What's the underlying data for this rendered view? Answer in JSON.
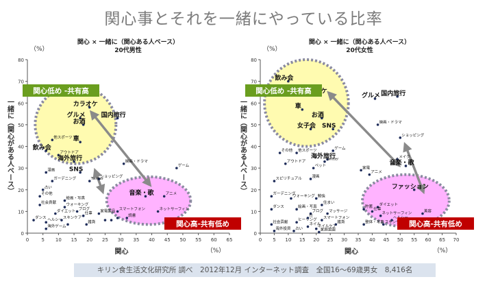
{
  "page": {
    "title": "関心事とそれを一緒にやっている比率",
    "footer": "キリン食生活文化研究所 調べ　2012年12月 インターネット調査　全国16～69歳男女　8,416名"
  },
  "colors": {
    "green": "#6a9e1f",
    "red": "#c00000",
    "yellow": "#fffbb0",
    "pink": "#ffb3ff",
    "dash": "#7e7e7e"
  },
  "chart_data": [
    {
      "type": "scatter",
      "title": "関心 × 一緒に（関心ある人ベース）",
      "subtitle": "20代男性",
      "xlabel": "関心",
      "ylabel": "一緒に（関心がある人ベース）",
      "x_unit": "（%）",
      "y_unit": "（%）",
      "xlim": [
        0,
        65
      ],
      "ylim": [
        0,
        80
      ],
      "xticks": [
        0,
        5,
        10,
        15,
        20,
        25,
        30,
        35,
        40,
        45,
        50,
        55,
        60,
        65
      ],
      "yticks": [
        0,
        10,
        20,
        30,
        40,
        50,
        60,
        70,
        80
      ],
      "callouts": [
        {
          "text": "関心低め -共有高",
          "color": "green",
          "position": "upper-left"
        },
        {
          "text": "関心高-共有低め",
          "color": "red",
          "position": "lower-right"
        }
      ],
      "clusters": [
        {
          "fill": "yellow",
          "cx": 15.5,
          "cy": 50,
          "rx": 13,
          "ry": 18
        },
        {
          "fill": "pink",
          "cx": 39,
          "cy": 15,
          "rx": 13.5,
          "ry": 11
        }
      ],
      "arrows": [
        {
          "from": [
            21,
            55
          ],
          "to": [
            39,
            23
          ]
        },
        {
          "from": [
            24,
            20
          ],
          "to": [
            22,
            28
          ]
        }
      ],
      "points": [
        {
          "x": 20,
          "y": 58,
          "label": "カラオケ",
          "big": true
        },
        {
          "x": 17,
          "y": 53,
          "label": "グルメ",
          "big": true
        },
        {
          "x": 18,
          "y": 50,
          "label": "お酒",
          "big": true
        },
        {
          "x": 29,
          "y": 53,
          "label": "国内旅行",
          "big": true
        },
        {
          "x": 17,
          "y": 42,
          "label": "車",
          "big": true
        },
        {
          "x": 8,
          "y": 43,
          "label": "他スポーツ",
          "big": false
        },
        {
          "x": 6,
          "y": 38,
          "label": "飲み会",
          "big": true
        },
        {
          "x": 10,
          "y": 36,
          "label": "アウトドア",
          "big": false
        },
        {
          "x": 15,
          "y": 33,
          "label": "海外旅行",
          "big": true
        },
        {
          "x": 17,
          "y": 28,
          "label": "SNS",
          "big": true
        },
        {
          "x": 31,
          "y": 32,
          "label": "映画・ドラマ",
          "big": false
        },
        {
          "x": 48,
          "y": 30,
          "label": "ゲーム",
          "big": false
        },
        {
          "x": 6,
          "y": 28,
          "label": "漫画",
          "big": false
        },
        {
          "x": 8,
          "y": 24,
          "label": "ガーデニング",
          "big": false
        },
        {
          "x": 5,
          "y": 20,
          "label": "占い",
          "big": false
        },
        {
          "x": 23,
          "y": 25,
          "label": "ショッピング",
          "big": false
        },
        {
          "x": 20,
          "y": 24,
          "label": "Twitter",
          "big": false
        },
        {
          "x": 4,
          "y": 17,
          "label": "その他",
          "big": false
        },
        {
          "x": 12,
          "y": 15,
          "label": "絵画・写真",
          "big": false
        },
        {
          "x": 4,
          "y": 13,
          "label": "社会貢献",
          "big": false
        },
        {
          "x": 12,
          "y": 12,
          "label": "ウォーキング",
          "big": false
        },
        {
          "x": 16,
          "y": 10,
          "label": "ブログ",
          "big": false
        },
        {
          "x": 38,
          "y": 17,
          "label": "音楽・歌",
          "big": true
        },
        {
          "x": 44,
          "y": 17,
          "label": "アニメ",
          "big": false
        },
        {
          "x": 9,
          "y": 9,
          "label": "ダイエット",
          "big": false
        },
        {
          "x": 18,
          "y": 8,
          "label": "仕事",
          "big": false
        },
        {
          "x": 23,
          "y": 9,
          "label": "家電製品",
          "big": false
        },
        {
          "x": 29,
          "y": 10,
          "label": "スマートフォン",
          "big": false
        },
        {
          "x": 42,
          "y": 10,
          "label": "ネットサーフィン",
          "big": false
        },
        {
          "x": 2,
          "y": 6,
          "label": "ダンス",
          "big": false
        },
        {
          "x": 6,
          "y": 5,
          "label": "ヘルシー",
          "big": false
        },
        {
          "x": 11,
          "y": 6,
          "label": "スキンケア",
          "big": false
        },
        {
          "x": 19,
          "y": 4,
          "label": "雑貨",
          "big": false
        },
        {
          "x": 29,
          "y": 7,
          "label": "",
          "big": false
        },
        {
          "x": 32,
          "y": 7,
          "label": "読書",
          "big": false
        },
        {
          "x": 6,
          "y": 2,
          "label": "海外ゲーム",
          "big": false
        },
        {
          "x": 13,
          "y": 4,
          "label": "",
          "big": false
        },
        {
          "x": 25,
          "y": 6,
          "label": "",
          "big": false
        },
        {
          "x": 27,
          "y": 6,
          "label": "",
          "big": false
        }
      ]
    },
    {
      "type": "scatter",
      "title": "関心 × 一緒に（関心ある人ベース）",
      "subtitle": "20代女性",
      "xlabel": "関心",
      "ylabel": "一緒に（関心がある人ベース）",
      "x_unit": "（%）",
      "y_unit": "（%）",
      "xlim": [
        0,
        70
      ],
      "ylim": [
        0,
        80
      ],
      "xticks": [
        0,
        5,
        10,
        15,
        20,
        25,
        30,
        35,
        40,
        45,
        50,
        55,
        60,
        65,
        70
      ],
      "yticks": [
        0,
        10,
        20,
        30,
        40,
        50,
        60,
        70,
        80
      ],
      "callouts": [
        {
          "text": "関心低め -共有高",
          "color": "green",
          "position": "upper-left"
        },
        {
          "text": "関心高-共有低め",
          "color": "red",
          "position": "lower-right"
        }
      ],
      "clusters": [
        {
          "fill": "yellow",
          "cx": 16.5,
          "cy": 60,
          "rx": 15,
          "ry": 20
        },
        {
          "fill": "pink",
          "cx": 52,
          "cy": 15,
          "rx": 15.5,
          "ry": 12
        }
      ],
      "arrows": [
        {
          "from": [
            25,
            64
          ],
          "to": [
            49,
            32
          ]
        },
        {
          "from": [
            52,
            40
          ],
          "to": [
            58,
            20
          ]
        }
      ],
      "points": [
        {
          "x": 10,
          "y": 70,
          "label": "飲み会",
          "big": true
        },
        {
          "x": 21,
          "y": 64,
          "label": "カラオケ",
          "big": true
        },
        {
          "x": 41,
          "y": 62,
          "label": "グルメ",
          "big": true
        },
        {
          "x": 49,
          "y": 63,
          "label": "国内旅行",
          "big": true
        },
        {
          "x": 15,
          "y": 57,
          "label": "車",
          "big": true
        },
        {
          "x": 22,
          "y": 53,
          "label": "お酒",
          "big": true
        },
        {
          "x": 18,
          "y": 48,
          "label": "女子会",
          "big": true
        },
        {
          "x": 26,
          "y": 48,
          "label": "SNS",
          "big": true
        },
        {
          "x": 42,
          "y": 50,
          "label": "映画・ドラマ",
          "big": false
        },
        {
          "x": 50,
          "y": 44,
          "label": "ショッピング",
          "big": false
        },
        {
          "x": 7,
          "y": 37,
          "label": "その他",
          "big": false
        },
        {
          "x": 13,
          "y": 37,
          "label": "他スポーツ",
          "big": false
        },
        {
          "x": 26,
          "y": 38,
          "label": "ゲーム",
          "big": false
        },
        {
          "x": 24,
          "y": 34,
          "label": "海外旅行",
          "big": true
        },
        {
          "x": 9,
          "y": 32,
          "label": "アウトドア",
          "big": false
        },
        {
          "x": 23,
          "y": 33,
          "label": "Twitter",
          "big": false
        },
        {
          "x": 19,
          "y": 30,
          "label": "ペット",
          "big": false
        },
        {
          "x": 49,
          "y": 34,
          "label": "メイク",
          "big": false
        },
        {
          "x": 52,
          "y": 31,
          "label": "音楽・歌",
          "big": true
        },
        {
          "x": 36,
          "y": 29,
          "label": "家電",
          "big": false
        },
        {
          "x": 39,
          "y": 27,
          "label": "アニメ",
          "big": false
        },
        {
          "x": 5,
          "y": 24,
          "label": "スピリチュアル",
          "big": false
        },
        {
          "x": 18,
          "y": 25,
          "label": "漫画",
          "big": false
        },
        {
          "x": 55,
          "y": 20,
          "label": "ファッション",
          "big": true
        },
        {
          "x": 4,
          "y": 17,
          "label": "ガーデニング",
          "big": false
        },
        {
          "x": 11,
          "y": 16,
          "label": "ウォーキング",
          "big": false
        },
        {
          "x": 20,
          "y": 16,
          "label": "勉強",
          "big": false
        },
        {
          "x": 22,
          "y": 13,
          "label": "住まい",
          "big": false
        },
        {
          "x": 13,
          "y": 11,
          "label": "絵画・写真",
          "big": false
        },
        {
          "x": 18,
          "y": 9,
          "label": "ブログ",
          "big": false
        },
        {
          "x": 24,
          "y": 9,
          "label": "マッサージ",
          "big": false
        },
        {
          "x": 37,
          "y": 11,
          "label": "貯蓄",
          "big": false
        },
        {
          "x": 42,
          "y": 12,
          "label": "ダイエット",
          "big": false
        },
        {
          "x": 40,
          "y": 10,
          "label": "仕事",
          "big": false
        },
        {
          "x": 58,
          "y": 9,
          "label": "美容",
          "big": false
        },
        {
          "x": 4,
          "y": 11,
          "label": "ダンス",
          "big": false
        },
        {
          "x": 13,
          "y": 5,
          "label": "ヒーリング",
          "big": false
        },
        {
          "x": 17,
          "y": 7,
          "label": "仕",
          "big": false
        },
        {
          "x": 22,
          "y": 6,
          "label": "スマートフォン",
          "big": false
        },
        {
          "x": 43,
          "y": 8,
          "label": "ネットサーフィン",
          "big": false
        },
        {
          "x": 47,
          "y": 6,
          "label": "ヘルシー",
          "big": false
        },
        {
          "x": 4,
          "y": 4,
          "label": "社会貢献",
          "big": false
        },
        {
          "x": 5,
          "y": 1,
          "label": "海外投資",
          "big": false
        },
        {
          "x": 17,
          "y": 3,
          "label": "ネイル",
          "big": false
        },
        {
          "x": 20,
          "y": 2,
          "label": "ネイルケア",
          "big": false
        },
        {
          "x": 27,
          "y": 4,
          "label": "雑貨",
          "big": false
        },
        {
          "x": 37,
          "y": 4,
          "label": "整体・写真",
          "big": false
        },
        {
          "x": 44,
          "y": 4,
          "label": "スキンケア",
          "big": false
        },
        {
          "x": 12,
          "y": 1,
          "label": "占い",
          "big": false
        },
        {
          "x": 21,
          "y": 0.5,
          "label": "家庭菜園",
          "big": false
        }
      ]
    }
  ]
}
